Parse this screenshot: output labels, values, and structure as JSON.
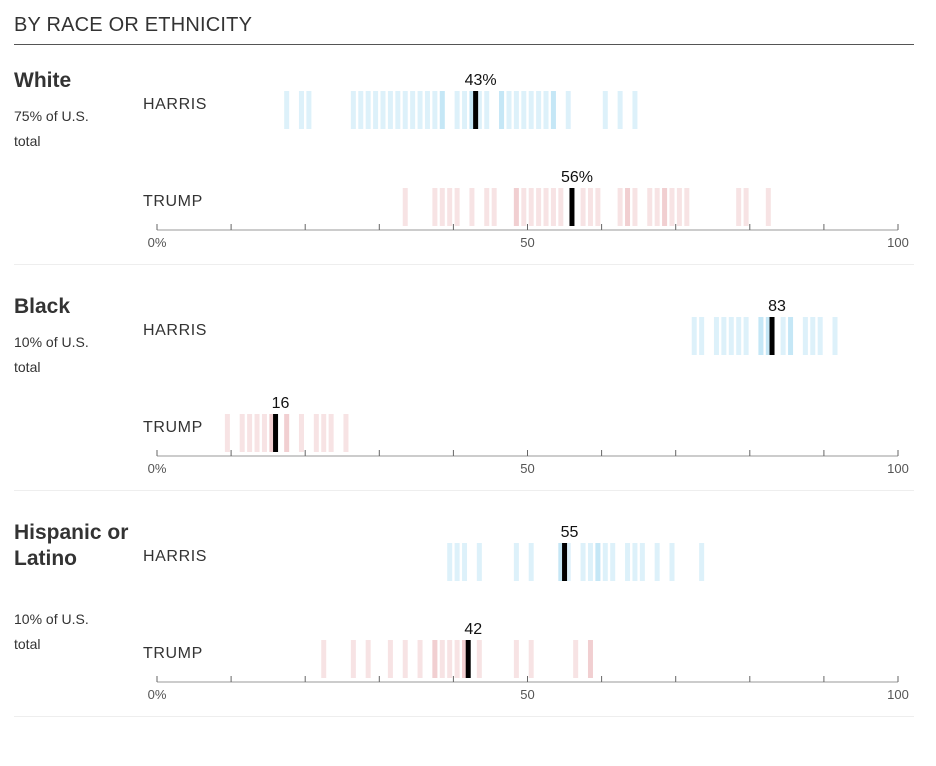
{
  "title": "BY RACE OR ETHNICITY",
  "colors": {
    "harris": "#8ecfee",
    "trump": "#e5a3a6",
    "median": "#000000",
    "axis": "#999999"
  },
  "chart_data": [
    {
      "type": "strip",
      "group": "White",
      "share": "75% of U.S. total",
      "xlim": [
        0,
        100
      ],
      "ticks": [
        0,
        10,
        20,
        30,
        40,
        50,
        60,
        70,
        80,
        90,
        100
      ],
      "tick_labels": {
        "0": "0%",
        "50": "50",
        "100": "100"
      },
      "series": [
        {
          "name": "HARRIS",
          "median": 43,
          "median_label": "43%",
          "values": [
            17.5,
            19.5,
            20.5,
            26.5,
            27.5,
            28.5,
            29.5,
            30.5,
            31.5,
            32.5,
            33.5,
            34.5,
            35.5,
            36.5,
            37.5,
            38.5,
            38.5,
            40.5,
            41.5,
            42.5,
            42.5,
            43.5,
            44.5,
            46.5,
            46.5,
            47.5,
            48.5,
            49.5,
            50.5,
            51.5,
            52.5,
            53.5,
            53.5,
            55.5,
            60.5,
            62.5,
            64.5
          ]
        },
        {
          "name": "TRUMP",
          "median": 56,
          "median_label": "56%",
          "values": [
            33.5,
            37.5,
            38.5,
            39.5,
            40.5,
            42.5,
            44.5,
            45.5,
            48.5,
            48.5,
            49.5,
            50.5,
            51.5,
            52.5,
            53.5,
            54.5,
            57.5,
            58.5,
            59.5,
            62.5,
            63.5,
            63.5,
            64.5,
            66.5,
            67.5,
            68.5,
            68.5,
            69.5,
            70.5,
            71.5,
            78.5,
            79.5,
            82.5
          ]
        }
      ]
    },
    {
      "type": "strip",
      "group": "Black",
      "share": "10% of U.S. total",
      "xlim": [
        0,
        100
      ],
      "ticks": [
        0,
        10,
        20,
        30,
        40,
        50,
        60,
        70,
        80,
        90,
        100
      ],
      "tick_labels": {
        "0": "0%",
        "50": "50",
        "100": "100"
      },
      "series": [
        {
          "name": "HARRIS",
          "median": 83,
          "median_label": "83",
          "values": [
            72.5,
            73.5,
            75.5,
            76.5,
            77.5,
            78.5,
            79.5,
            81.5,
            81.5,
            82.5,
            82.5,
            84.5,
            85.5,
            85.5,
            87.5,
            88.5,
            89.5,
            91.5
          ]
        },
        {
          "name": "TRUMP",
          "median": 16,
          "median_label": "16",
          "values": [
            9.5,
            11.5,
            12.5,
            13.5,
            14.5,
            15.5,
            15.5,
            17.5,
            17.5,
            19.5,
            21.5,
            22.5,
            23.5,
            25.5
          ]
        }
      ]
    },
    {
      "type": "strip",
      "group": "Hispanic or Latino",
      "share": "10% of U.S. total",
      "xlim": [
        0,
        100
      ],
      "ticks": [
        0,
        10,
        20,
        30,
        40,
        50,
        60,
        70,
        80,
        90,
        100
      ],
      "tick_labels": {
        "0": "0%",
        "50": "50",
        "100": "100"
      },
      "series": [
        {
          "name": "HARRIS",
          "median": 55,
          "median_label": "55",
          "values": [
            39.5,
            40.5,
            41.5,
            43.5,
            48.5,
            50.5,
            54.5,
            54.5,
            55.5,
            57.5,
            58.5,
            59.5,
            59.5,
            60.5,
            61.5,
            63.5,
            64.5,
            65.5,
            67.5,
            69.5,
            73.5
          ]
        },
        {
          "name": "TRUMP",
          "median": 42,
          "median_label": "42",
          "values": [
            22.5,
            26.5,
            28.5,
            31.5,
            33.5,
            35.5,
            37.5,
            37.5,
            38.5,
            39.5,
            40.5,
            41.5,
            41.5,
            43.5,
            48.5,
            50.5,
            56.5,
            58.5,
            58.5
          ]
        }
      ]
    }
  ]
}
